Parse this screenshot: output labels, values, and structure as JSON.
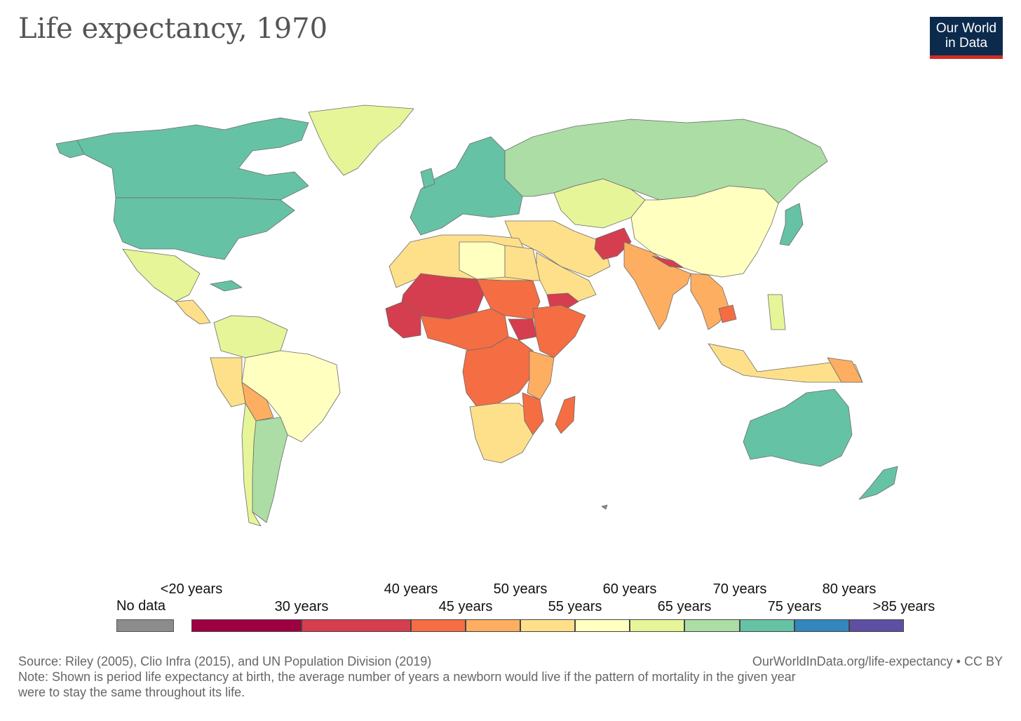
{
  "title": "Life expectancy, 1970",
  "logo": {
    "line1": "Our World",
    "line2": "in Data"
  },
  "legend": {
    "no_data": "No data",
    "top_labels": [
      "<20 years",
      "40 years",
      "50 years",
      "60 years",
      "70 years",
      "80 years"
    ],
    "bottom_labels": [
      "30 years",
      "45 years",
      "55 years",
      "65 years",
      "75 years",
      ">85 years"
    ],
    "bins": [
      {
        "color": "#9e0142",
        "range": "<20-30"
      },
      {
        "color": "#d53e4f",
        "range": "30-40"
      },
      {
        "color": "#f46d43",
        "range": "40-45"
      },
      {
        "color": "#fdae61",
        "range": "45-50"
      },
      {
        "color": "#fee08b",
        "range": "50-55"
      },
      {
        "color": "#ffffbf",
        "range": "55-60"
      },
      {
        "color": "#e6f598",
        "range": "60-65"
      },
      {
        "color": "#abdda4",
        "range": "65-70"
      },
      {
        "color": "#66c2a5",
        "range": "70-75"
      },
      {
        "color": "#3288bd",
        "range": "75-80"
      },
      {
        "color": "#5e4fa2",
        "range": "80->85"
      }
    ]
  },
  "colors": {
    "no_data": "#8c8c8c",
    "ocean": "#ffffff",
    "border": "#666666"
  },
  "chart_data": {
    "type": "choropleth",
    "title": "Life expectancy, 1970",
    "regions": [
      {
        "name": "Canada",
        "bin": "70-75"
      },
      {
        "name": "United States",
        "bin": "70-75"
      },
      {
        "name": "Mexico",
        "bin": "60-65"
      },
      {
        "name": "Greenland",
        "bin": "60-65"
      },
      {
        "name": "Brazil",
        "bin": "55-60"
      },
      {
        "name": "Argentina",
        "bin": "65-70"
      },
      {
        "name": "Bolivia",
        "bin": "45-50"
      },
      {
        "name": "Peru",
        "bin": "50-55"
      },
      {
        "name": "Western Europe",
        "bin": "70-75"
      },
      {
        "name": "Russia",
        "bin": "65-70"
      },
      {
        "name": "Kazakhstan",
        "bin": "60-65"
      },
      {
        "name": "China",
        "bin": "55-60"
      },
      {
        "name": "India",
        "bin": "45-50"
      },
      {
        "name": "Afghanistan",
        "bin": "30-40"
      },
      {
        "name": "Yemen",
        "bin": "30-40"
      },
      {
        "name": "Mali",
        "bin": "30-40"
      },
      {
        "name": "Niger",
        "bin": "30-40"
      },
      {
        "name": "South Sudan",
        "bin": "30-40"
      },
      {
        "name": "DR Congo",
        "bin": "40-45"
      },
      {
        "name": "Ethiopia",
        "bin": "40-45"
      },
      {
        "name": "Madagascar",
        "bin": "40-45"
      },
      {
        "name": "South Africa",
        "bin": "50-55"
      },
      {
        "name": "Libya",
        "bin": "55-60"
      },
      {
        "name": "Egypt",
        "bin": "50-55"
      },
      {
        "name": "Japan",
        "bin": "70-75"
      },
      {
        "name": "Australia",
        "bin": "70-75"
      },
      {
        "name": "New Zealand",
        "bin": "70-75"
      },
      {
        "name": "Indonesia",
        "bin": "50-55"
      },
      {
        "name": "Papua New Guinea",
        "bin": "45-50"
      },
      {
        "name": "Cambodia",
        "bin": "40-45"
      }
    ]
  },
  "footer": {
    "source": "Source: Riley (2005), Clio Infra (2015), and UN Population Division (2019)",
    "link": "OurWorldInData.org/life-expectancy • CC BY",
    "note1": "Note: Shown is period life expectancy at birth, the average number of years a newborn would live if the pattern of mortality in the given year",
    "note2": "were to stay the same throughout its life."
  }
}
